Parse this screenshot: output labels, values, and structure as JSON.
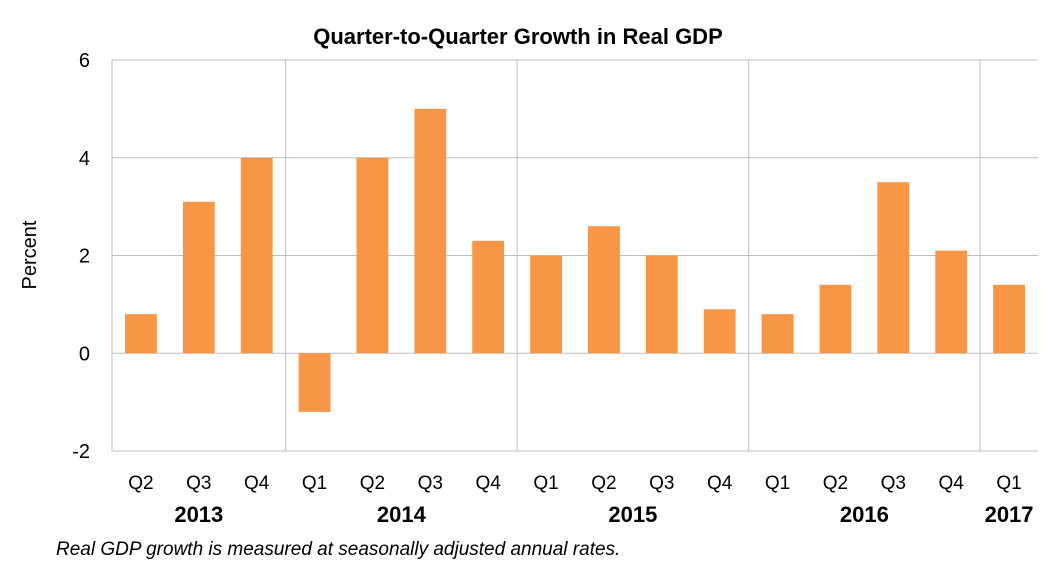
{
  "chart_data": {
    "type": "bar",
    "title": "Quarter-to-Quarter Growth in Real GDP",
    "ylabel": "Percent",
    "xlabel": "",
    "ylim": [
      -2,
      6
    ],
    "yticks": [
      -2,
      0,
      2,
      4,
      6
    ],
    "grid": true,
    "categories": [
      "Q2",
      "Q3",
      "Q4",
      "Q1",
      "Q2",
      "Q3",
      "Q4",
      "Q1",
      "Q2",
      "Q3",
      "Q4",
      "Q1",
      "Q2",
      "Q3",
      "Q4",
      "Q1"
    ],
    "values": [
      0.8,
      3.1,
      4.0,
      -1.2,
      4.0,
      5.0,
      2.3,
      2.0,
      2.6,
      2.0,
      0.9,
      0.8,
      1.4,
      3.5,
      2.1,
      1.4
    ],
    "groups": [
      {
        "label": "2013",
        "start": 0,
        "count": 3
      },
      {
        "label": "2014",
        "start": 3,
        "count": 4
      },
      {
        "label": "2015",
        "start": 7,
        "count": 4
      },
      {
        "label": "2016",
        "start": 11,
        "count": 4
      },
      {
        "label": "2017",
        "start": 15,
        "count": 1
      }
    ],
    "bar_color": "#f79646",
    "note": "Real GDP growth is measured at seasonally adjusted annual rates."
  }
}
